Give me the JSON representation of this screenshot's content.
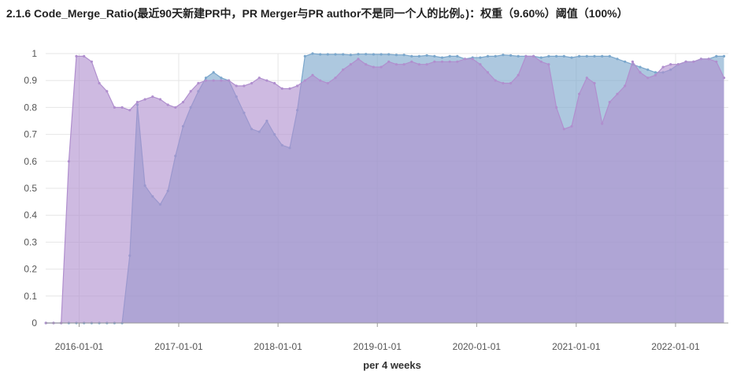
{
  "title": "2.1.6 Code_Merge_Ratio(最近90天新建PR中，PR Merger与PR author不是同一个人的比例。)：权重（9.60%）阈值（100%）",
  "chart_data": {
    "type": "area",
    "xlabel": "per 4 weeks",
    "ylabel": "",
    "ylim": [
      0,
      1
    ],
    "yticks": [
      0,
      0.1,
      0.2,
      0.3,
      0.4,
      0.5,
      0.6,
      0.7,
      0.8,
      0.9,
      1
    ],
    "ytick_labels": [
      "0",
      "0.1",
      "0.2",
      "0.3",
      "0.4",
      "0.5",
      "0.6",
      "0.7",
      "0.8",
      "0.9",
      "1"
    ],
    "xticks": [
      "2016-01-01",
      "2017-01-01",
      "2018-01-01",
      "2019-01-01",
      "2020-01-01",
      "2021-01-01",
      "2022-01-01"
    ],
    "x_start": "2015-08-31",
    "x_end": "2022-07-14",
    "grid": true,
    "legend": "none",
    "series": [
      {
        "color": "#7ba7cc",
        "x": [
          "2015-09-01",
          "2015-09-29",
          "2015-10-27",
          "2015-11-24",
          "2015-12-22",
          "2016-01-19",
          "2016-02-16",
          "2016-03-15",
          "2016-04-12",
          "2016-05-10",
          "2016-06-07",
          "2016-07-05",
          "2016-08-02",
          "2016-08-30",
          "2016-09-27",
          "2016-10-25",
          "2016-11-22",
          "2016-12-20",
          "2017-01-17",
          "2017-02-14",
          "2017-03-14",
          "2017-04-11",
          "2017-05-09",
          "2017-06-06",
          "2017-07-04",
          "2017-08-01",
          "2017-08-29",
          "2017-09-26",
          "2017-10-24",
          "2017-11-21",
          "2017-12-19",
          "2018-01-16",
          "2018-02-13",
          "2018-03-13",
          "2018-04-10",
          "2018-05-08",
          "2018-06-05",
          "2018-07-03",
          "2018-07-31",
          "2018-08-28",
          "2018-09-25",
          "2018-10-23",
          "2018-11-20",
          "2018-12-18",
          "2019-01-15",
          "2019-02-12",
          "2019-03-12",
          "2019-04-09",
          "2019-05-07",
          "2019-06-04",
          "2019-07-02",
          "2019-07-30",
          "2019-08-27",
          "2019-09-24",
          "2019-10-22",
          "2019-11-19",
          "2019-12-17",
          "2020-01-14",
          "2020-02-11",
          "2020-03-10",
          "2020-04-07",
          "2020-05-05",
          "2020-06-02",
          "2020-06-30",
          "2020-07-28",
          "2020-08-25",
          "2020-09-22",
          "2020-10-20",
          "2020-11-17",
          "2020-12-15",
          "2021-01-12",
          "2021-02-09",
          "2021-03-09",
          "2021-04-06",
          "2021-05-04",
          "2021-06-01",
          "2021-06-29",
          "2021-07-27",
          "2021-08-24",
          "2021-09-21",
          "2021-10-19",
          "2021-11-16",
          "2021-12-14",
          "2022-01-11",
          "2022-02-08",
          "2022-03-08",
          "2022-04-05",
          "2022-05-03",
          "2022-05-31",
          "2022-06-28"
        ],
        "values": [
          0,
          0,
          0,
          0,
          0,
          0,
          0,
          0,
          0,
          0,
          0,
          0.25,
          0.81,
          0.51,
          0.47,
          0.44,
          0.49,
          0.62,
          0.73,
          0.8,
          0.86,
          0.91,
          0.93,
          0.91,
          0.9,
          0.84,
          0.78,
          0.72,
          0.71,
          0.75,
          0.7,
          0.66,
          0.65,
          0.79,
          0.99,
          1,
          0.997,
          0.997,
          0.997,
          0.997,
          0.995,
          0.998,
          0.998,
          0.997,
          0.997,
          0.997,
          0.995,
          0.995,
          0.99,
          0.99,
          0.993,
          0.99,
          0.985,
          0.99,
          0.99,
          0.98,
          0.985,
          0.985,
          0.99,
          0.99,
          0.995,
          0.993,
          0.99,
          0.99,
          0.99,
          0.985,
          0.99,
          0.99,
          0.99,
          0.985,
          0.99,
          0.99,
          0.99,
          0.99,
          0.99,
          0.98,
          0.97,
          0.96,
          0.95,
          0.94,
          0.93,
          0.93,
          0.94,
          0.96,
          0.97,
          0.97,
          0.98,
          0.98,
          0.99,
          0.99
        ]
      },
      {
        "color": "#b08fce",
        "x": [
          "2015-09-01",
          "2015-09-29",
          "2015-10-27",
          "2015-11-24",
          "2015-12-22",
          "2016-01-19",
          "2016-02-16",
          "2016-03-15",
          "2016-04-12",
          "2016-05-10",
          "2016-06-07",
          "2016-07-05",
          "2016-08-02",
          "2016-08-30",
          "2016-09-27",
          "2016-10-25",
          "2016-11-22",
          "2016-12-20",
          "2017-01-17",
          "2017-02-14",
          "2017-03-14",
          "2017-04-11",
          "2017-05-09",
          "2017-06-06",
          "2017-07-04",
          "2017-08-01",
          "2017-08-29",
          "2017-09-26",
          "2017-10-24",
          "2017-11-21",
          "2017-12-19",
          "2018-01-16",
          "2018-02-13",
          "2018-03-13",
          "2018-04-10",
          "2018-05-08",
          "2018-06-05",
          "2018-07-03",
          "2018-07-31",
          "2018-08-28",
          "2018-09-25",
          "2018-10-23",
          "2018-11-20",
          "2018-12-18",
          "2019-01-15",
          "2019-02-12",
          "2019-03-12",
          "2019-04-09",
          "2019-05-07",
          "2019-06-04",
          "2019-07-02",
          "2019-07-30",
          "2019-08-27",
          "2019-09-24",
          "2019-10-22",
          "2019-11-19",
          "2019-12-17",
          "2020-01-14",
          "2020-02-11",
          "2020-03-10",
          "2020-04-07",
          "2020-05-05",
          "2020-06-02",
          "2020-06-30",
          "2020-07-28",
          "2020-08-25",
          "2020-09-22",
          "2020-10-20",
          "2020-11-17",
          "2020-12-15",
          "2021-01-12",
          "2021-02-09",
          "2021-03-09",
          "2021-04-06",
          "2021-05-04",
          "2021-06-01",
          "2021-06-29",
          "2021-07-27",
          "2021-08-24",
          "2021-09-21",
          "2021-10-19",
          "2021-11-16",
          "2021-12-14",
          "2022-01-11",
          "2022-02-08",
          "2022-03-08",
          "2022-04-05",
          "2022-05-03",
          "2022-05-31",
          "2022-06-28"
        ],
        "values": [
          0,
          0,
          0,
          0.6,
          0.99,
          0.99,
          0.97,
          0.89,
          0.86,
          0.8,
          0.8,
          0.79,
          0.82,
          0.83,
          0.84,
          0.83,
          0.81,
          0.8,
          0.82,
          0.86,
          0.89,
          0.9,
          0.9,
          0.9,
          0.9,
          0.88,
          0.88,
          0.89,
          0.91,
          0.9,
          0.89,
          0.87,
          0.87,
          0.88,
          0.9,
          0.92,
          0.9,
          0.89,
          0.91,
          0.94,
          0.96,
          0.98,
          0.96,
          0.95,
          0.95,
          0.97,
          0.96,
          0.96,
          0.97,
          0.96,
          0.96,
          0.97,
          0.97,
          0.97,
          0.97,
          0.98,
          0.98,
          0.96,
          0.93,
          0.9,
          0.89,
          0.89,
          0.92,
          0.99,
          0.99,
          0.97,
          0.96,
          0.8,
          0.72,
          0.73,
          0.85,
          0.91,
          0.89,
          0.74,
          0.82,
          0.85,
          0.88,
          0.97,
          0.93,
          0.91,
          0.92,
          0.95,
          0.96,
          0.96,
          0.97,
          0.97,
          0.98,
          0.98,
          0.97,
          0.91
        ]
      }
    ]
  }
}
